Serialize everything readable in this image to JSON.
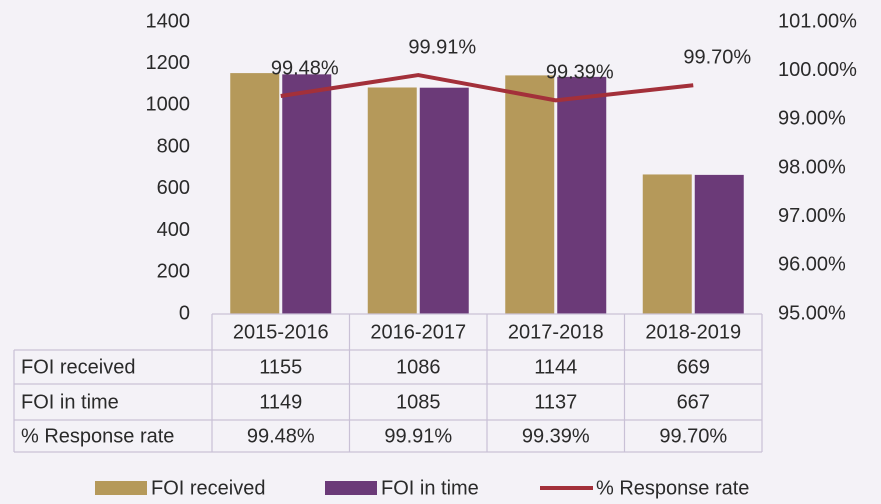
{
  "chart_data": {
    "type": "bar",
    "categories": [
      "2015-2016",
      "2016-2017",
      "2017-2018",
      "2018-2019"
    ],
    "series": [
      {
        "name": "FOI received",
        "color": "#b5995a",
        "values": [
          1155,
          1086,
          1144,
          669
        ]
      },
      {
        "name": "FOI in time",
        "color": "#6b3a78",
        "values": [
          1149,
          1085,
          1137,
          667
        ]
      },
      {
        "name": "% Response rate",
        "color": "#a3303a",
        "type": "line",
        "axis": "y2",
        "values": [
          99.48,
          99.91,
          99.39,
          99.7
        ],
        "value_labels": [
          "99.48%",
          "99.91%",
          "99.39%",
          "99.70%"
        ]
      }
    ],
    "ylim": [
      0,
      1400
    ],
    "yticks": [
      0,
      200,
      400,
      600,
      800,
      1000,
      1200,
      1400
    ],
    "y2lim": [
      95,
      101
    ],
    "y2ticks": [
      {
        "value": 95,
        "label": "95.00%"
      },
      {
        "value": 96,
        "label": "96.00%"
      },
      {
        "value": 97,
        "label": "97.00%"
      },
      {
        "value": 98,
        "label": "98.00%"
      },
      {
        "value": 99,
        "label": "99.00%"
      },
      {
        "value": 100,
        "label": "100.00%"
      },
      {
        "value": 101,
        "label": "101.00%"
      }
    ],
    "data_table": true,
    "legend": "bottom"
  }
}
